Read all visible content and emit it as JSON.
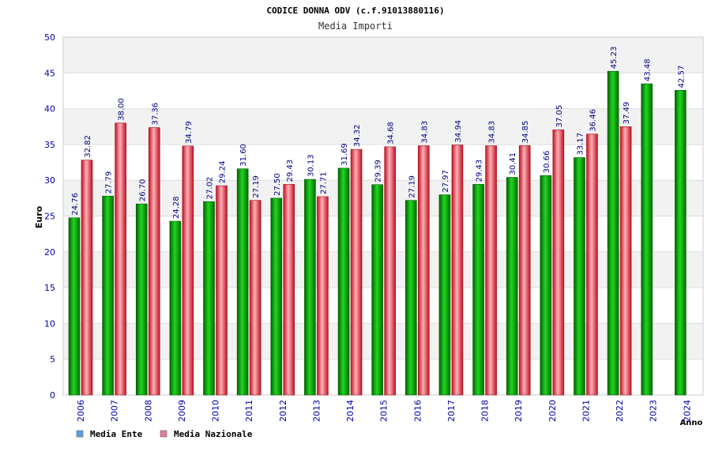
{
  "chart_data": {
    "type": "bar",
    "title": "CODICE DONNA ODV (c.f.91013880116)",
    "subtitle": "Media Importi",
    "ylabel": "Euro",
    "xlabel": "Anno",
    "ylim": [
      0,
      50
    ],
    "yticks": [
      0,
      5,
      10,
      15,
      20,
      25,
      30,
      35,
      40,
      45,
      50
    ],
    "grid": true,
    "legend_position": "bottom-left",
    "categories": [
      "2006",
      "2007",
      "2008",
      "2009",
      "2010",
      "2011",
      "2012",
      "2013",
      "2014",
      "2015",
      "2016",
      "2017",
      "2018",
      "2019",
      "2020",
      "2021",
      "2022",
      "2023",
      "2024"
    ],
    "series": [
      {
        "name": "Media Ente",
        "color": "#00b000",
        "legend_color": "#5aa0e6",
        "values": [
          24.76,
          27.79,
          26.7,
          24.28,
          27.02,
          31.6,
          27.5,
          30.13,
          31.69,
          29.39,
          27.19,
          27.97,
          29.43,
          30.41,
          30.66,
          33.17,
          45.23,
          43.48,
          42.57
        ],
        "labels": [
          "24.76",
          "27.79",
          "26.70",
          "24.28",
          "27.02",
          "31.60",
          "27.50",
          "30.13",
          "31.69",
          "29.39",
          "27.19",
          "27.97",
          "29.43",
          "30.41",
          "30.66",
          "33.17",
          "45.23",
          "43.48",
          "42.57"
        ]
      },
      {
        "name": "Media Nazionale",
        "color": "#e0303a",
        "legend_color": "#e07aa0",
        "values": [
          32.82,
          38.0,
          37.36,
          34.79,
          29.24,
          27.19,
          29.43,
          27.71,
          34.32,
          34.68,
          34.83,
          34.94,
          34.83,
          34.85,
          37.05,
          36.46,
          37.49,
          null,
          null
        ],
        "labels": [
          "32.82",
          "38.00",
          "37.36",
          "34.79",
          "29.24",
          "27.19",
          "29.43",
          "27.71",
          "34.32",
          "34.68",
          "34.83",
          "34.94",
          "34.83",
          "34.85",
          "37.05",
          "36.46",
          "37.49",
          null,
          null
        ]
      }
    ]
  }
}
